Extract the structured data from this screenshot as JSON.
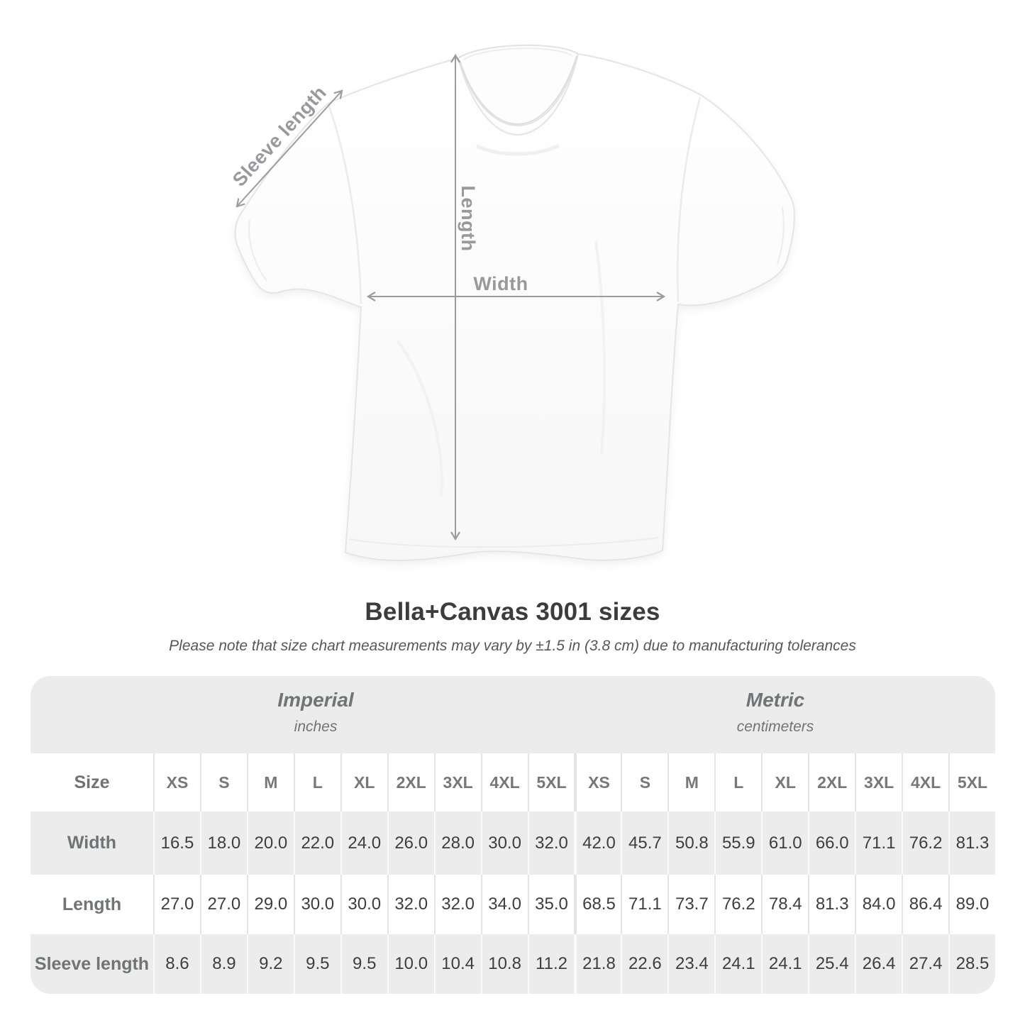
{
  "diagram": {
    "sleeve_length_label": "Sleeve length",
    "length_label": "Length",
    "width_label": "Width"
  },
  "title": "Bella+Canvas 3001 sizes",
  "subtitle": "Please note that size chart measurements may vary by ±1.5 in (3.8 cm) due to manufacturing tolerances",
  "table": {
    "unit_groups": [
      {
        "label": "Imperial",
        "sublabel": "inches"
      },
      {
        "label": "Metric",
        "sublabel": "centimeters"
      }
    ],
    "size_header": "Size",
    "sizes": [
      "XS",
      "S",
      "M",
      "L",
      "XL",
      "2XL",
      "3XL",
      "4XL",
      "5XL"
    ],
    "rows": [
      {
        "label": "Width",
        "imperial": [
          "16.5",
          "18.0",
          "20.0",
          "22.0",
          "24.0",
          "26.0",
          "28.0",
          "30.0",
          "32.0"
        ],
        "metric": [
          "42.0",
          "45.7",
          "50.8",
          "55.9",
          "61.0",
          "66.0",
          "71.1",
          "76.2",
          "81.3"
        ]
      },
      {
        "label": "Length",
        "imperial": [
          "27.0",
          "27.0",
          "29.0",
          "30.0",
          "30.0",
          "32.0",
          "32.0",
          "34.0",
          "35.0"
        ],
        "metric": [
          "68.5",
          "71.1",
          "73.7",
          "76.2",
          "78.4",
          "81.3",
          "84.0",
          "86.4",
          "89.0"
        ]
      },
      {
        "label": "Sleeve length",
        "imperial": [
          "8.6",
          "8.9",
          "9.2",
          "9.5",
          "9.5",
          "10.0",
          "10.4",
          "10.8",
          "11.2"
        ],
        "metric": [
          "21.8",
          "22.6",
          "23.4",
          "24.1",
          "24.1",
          "25.4",
          "26.4",
          "27.4",
          "28.5"
        ]
      }
    ]
  },
  "colors": {
    "arrow_gray": "#9a9c9e",
    "label_gray": "#97999c",
    "table_band_gray": "#ececec",
    "value_text": "#3c3e40",
    "header_text": "#6f7477"
  },
  "chart_data": {
    "type": "table",
    "title": "Bella+Canvas 3001 sizes",
    "note": "Size chart measurements may vary by ±1.5 in (3.8 cm) due to manufacturing tolerances",
    "columns": [
      "XS",
      "S",
      "M",
      "L",
      "XL",
      "2XL",
      "3XL",
      "4XL",
      "5XL"
    ],
    "unit_groups": [
      "Imperial (inches)",
      "Metric (centimeters)"
    ],
    "rows": [
      {
        "measurement": "Width",
        "imperial_inches": [
          16.5,
          18.0,
          20.0,
          22.0,
          24.0,
          26.0,
          28.0,
          30.0,
          32.0
        ],
        "metric_centimeters": [
          42.0,
          45.7,
          50.8,
          55.9,
          61.0,
          66.0,
          71.1,
          76.2,
          81.3
        ]
      },
      {
        "measurement": "Length",
        "imperial_inches": [
          27.0,
          27.0,
          29.0,
          30.0,
          30.0,
          32.0,
          32.0,
          34.0,
          35.0
        ],
        "metric_centimeters": [
          68.5,
          71.1,
          73.7,
          76.2,
          78.4,
          81.3,
          84.0,
          86.4,
          89.0
        ]
      },
      {
        "measurement": "Sleeve length",
        "imperial_inches": [
          8.6,
          8.9,
          9.2,
          9.5,
          9.5,
          10.0,
          10.4,
          10.8,
          11.2
        ],
        "metric_centimeters": [
          21.8,
          22.6,
          23.4,
          24.1,
          24.1,
          25.4,
          26.4,
          27.4,
          28.5
        ]
      }
    ]
  }
}
